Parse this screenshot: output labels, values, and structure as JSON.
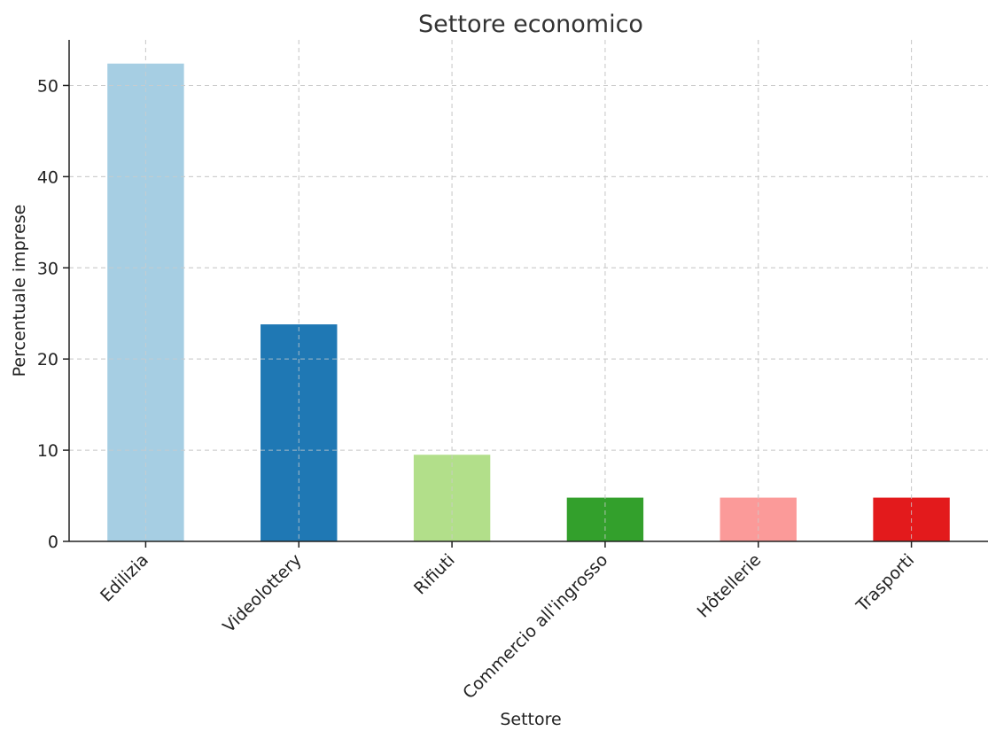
{
  "chart_data": {
    "type": "bar",
    "title": "Settore economico",
    "xlabel": "Settore",
    "ylabel": "Percentuale imprese",
    "categories": [
      "Edilizia",
      "Videolottery",
      "Rifiuti",
      "Commercio all'ingrosso",
      "Hôtellerie",
      "Trasporti"
    ],
    "values": [
      52.4,
      23.8,
      9.5,
      4.8,
      4.8,
      4.8
    ],
    "colors": [
      "#a6cee3",
      "#1f78b4",
      "#b2df8a",
      "#33a02c",
      "#fb9a99",
      "#e31a1c"
    ],
    "ylim": [
      0,
      55
    ],
    "yticks": [
      0,
      10,
      20,
      30,
      40,
      50
    ],
    "grid": true,
    "legend": "none"
  }
}
